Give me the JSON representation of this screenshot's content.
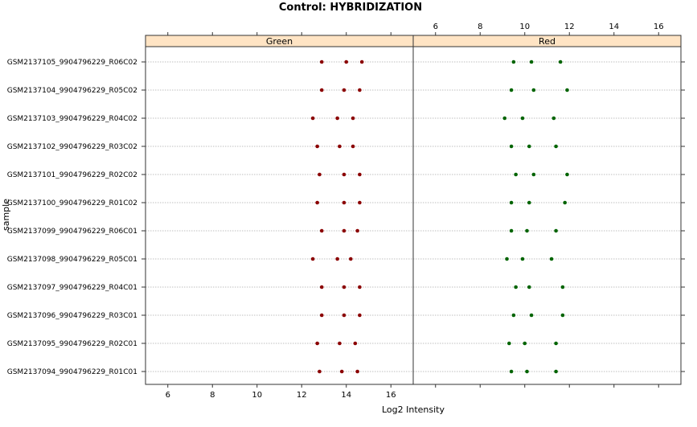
{
  "chart_data": {
    "type": "scatter",
    "title": "Control: HYBRIDIZATION",
    "xlabel": "Log2 Intensity",
    "ylabel": "sample",
    "xlim": [
      5,
      17
    ],
    "x_ticks": [
      6,
      8,
      10,
      12,
      14,
      16
    ],
    "grid": "dotted horizontal lines at each sample",
    "categories": [
      "GSM2137105_9904796229_R06C02",
      "GSM2137104_9904796229_R05C02",
      "GSM2137103_9904796229_R04C02",
      "GSM2137102_9904796229_R03C02",
      "GSM2137101_9904796229_R02C02",
      "GSM2137100_9904796229_R01C02",
      "GSM2137099_9904796229_R06C01",
      "GSM2137098_9904796229_R05C01",
      "GSM2137097_9904796229_R04C01",
      "GSM2137096_9904796229_R03C01",
      "GSM2137095_9904796229_R02C01",
      "GSM2137094_9904796229_R01C01"
    ],
    "panels": [
      {
        "name": "Green",
        "color": "#8b0000",
        "values": [
          [
            12.9,
            14.0,
            14.7
          ],
          [
            12.9,
            13.9,
            14.6
          ],
          [
            12.5,
            13.6,
            14.3
          ],
          [
            12.7,
            13.7,
            14.3
          ],
          [
            12.8,
            13.9,
            14.6
          ],
          [
            12.7,
            13.9,
            14.6
          ],
          [
            12.9,
            13.9,
            14.5
          ],
          [
            12.5,
            13.6,
            14.2
          ],
          [
            12.9,
            13.9,
            14.6
          ],
          [
            12.9,
            13.9,
            14.6
          ],
          [
            12.7,
            13.7,
            14.4
          ],
          [
            12.8,
            13.8,
            14.5
          ]
        ]
      },
      {
        "name": "Red",
        "color": "#006400",
        "values": [
          [
            9.5,
            10.3,
            11.6
          ],
          [
            9.4,
            10.4,
            11.9
          ],
          [
            9.1,
            9.9,
            11.3
          ],
          [
            9.4,
            10.2,
            11.4
          ],
          [
            9.6,
            10.4,
            11.9
          ],
          [
            9.4,
            10.2,
            11.8
          ],
          [
            9.4,
            10.1,
            11.4
          ],
          [
            9.2,
            9.9,
            11.2
          ],
          [
            9.6,
            10.2,
            11.7
          ],
          [
            9.5,
            10.3,
            11.7
          ],
          [
            9.3,
            10.0,
            11.4
          ],
          [
            9.4,
            10.1,
            11.4
          ]
        ]
      }
    ],
    "strip_color": "#ffe4c4"
  }
}
